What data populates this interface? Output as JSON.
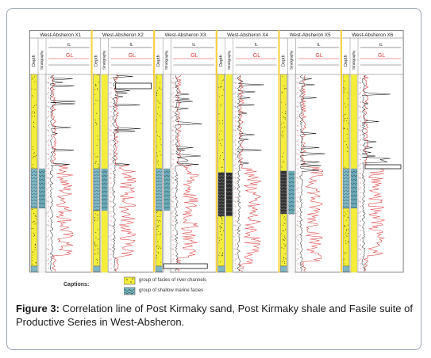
{
  "wells": [
    {
      "name": "West-Absheron X1"
    },
    {
      "name": "West-Absheron X2"
    },
    {
      "name": "West-Absheron X3"
    },
    {
      "name": "West-Absheron X4"
    },
    {
      "name": "West-Absheron X5"
    },
    {
      "name": "West-Absheron X6"
    }
  ],
  "header_labels": {
    "depth": "Depth",
    "stratigraphy": "Stratigraphy",
    "il": "IL",
    "gl": "GL"
  },
  "legend": {
    "title": "Captions:",
    "items": [
      {
        "label": "group of facies of river channels",
        "color": "#f4ee3a"
      },
      {
        "label": "group of shallow marine facies",
        "color": "#7fb8c4"
      }
    ]
  },
  "caption": {
    "prefix": "Figure 3:",
    "text": " Correlation line of Post Kirmaky sand, Post Kirmaky shale and Fasile suite of Productive Series in West-Absheron."
  },
  "colors": {
    "river": "#f4ee3a",
    "marine": "#7fb8c4",
    "shale": "#2a2a2a",
    "log_red": "#d93a3a",
    "log_black": "#111111",
    "separator": "#ffd23a"
  }
}
